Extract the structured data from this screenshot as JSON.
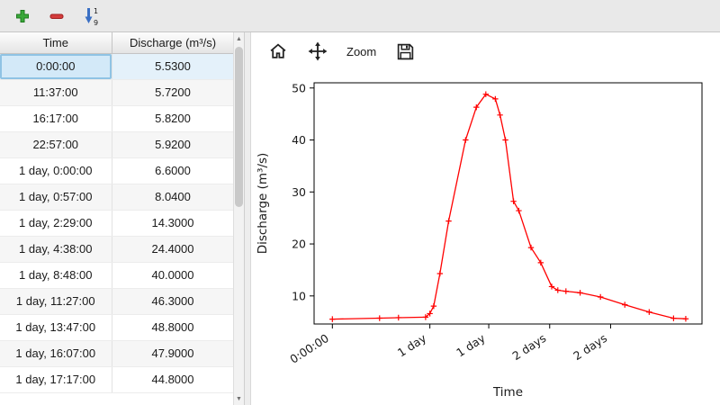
{
  "main_toolbar": {
    "buttons": [
      {
        "name": "add-row",
        "icon": "plus-icon",
        "color": "#3aa83a"
      },
      {
        "name": "remove-row",
        "icon": "minus-icon",
        "color": "#d43c3c"
      },
      {
        "name": "sort-rows",
        "icon": "sort-1-9-icon",
        "color": "#3a6fc4",
        "sort_top": "1",
        "sort_bottom": "9"
      }
    ]
  },
  "table": {
    "columns": [
      "Time",
      "Discharge (m³/s)"
    ],
    "selected_row_index": 0,
    "rows": [
      [
        "0:00:00",
        "5.5300"
      ],
      [
        "11:37:00",
        "5.7200"
      ],
      [
        "16:17:00",
        "5.8200"
      ],
      [
        "22:57:00",
        "5.9200"
      ],
      [
        "1 day, 0:00:00",
        "6.6000"
      ],
      [
        "1 day, 0:57:00",
        "8.0400"
      ],
      [
        "1 day, 2:29:00",
        "14.3000"
      ],
      [
        "1 day, 4:38:00",
        "24.4000"
      ],
      [
        "1 day, 8:48:00",
        "40.0000"
      ],
      [
        "1 day, 11:27:00",
        "46.3000"
      ],
      [
        "1 day, 13:47:00",
        "48.8000"
      ],
      [
        "1 day, 16:07:00",
        "47.9000"
      ],
      [
        "1 day, 17:17:00",
        "44.8000"
      ]
    ]
  },
  "scrollbar": {
    "up_glyph": "▲",
    "down_glyph": "▼"
  },
  "plot_toolbar": {
    "home_tooltip": "Home",
    "pan_tooltip": "Pan",
    "zoom_label": "Zoom",
    "save_tooltip": "Save"
  },
  "chart_data": {
    "type": "line",
    "title": "",
    "xlabel": "Time",
    "ylabel": "Discharge (m³/s)",
    "line_color": "#ff0000",
    "marker": "+",
    "grid": false,
    "xlim_hours": [
      -4.5,
      91
    ],
    "ylim": [
      4.6,
      51
    ],
    "x_ticks": {
      "hours": [
        0,
        24,
        38.5,
        53.5,
        68.5
      ],
      "labels": [
        "0:00:00",
        "1 day",
        "1 day",
        "2 days",
        "2 days"
      ]
    },
    "y_ticks": [
      10,
      20,
      30,
      40,
      50
    ],
    "series": [
      {
        "name": "Discharge",
        "x_hours": [
          0,
          11.62,
          16.28,
          22.95,
          24.0,
          24.95,
          26.48,
          28.63,
          32.8,
          35.45,
          37.78,
          40.12,
          41.28,
          42.6,
          44.6,
          45.9,
          48.9,
          51.3,
          54.0,
          55.5,
          57.5,
          61.0,
          66.0,
          72.0,
          78.0,
          84.0,
          87.0
        ],
        "y": [
          5.53,
          5.72,
          5.82,
          5.92,
          6.6,
          8.04,
          14.3,
          24.4,
          40.0,
          46.3,
          48.8,
          47.9,
          44.8,
          40.0,
          28.2,
          26.4,
          19.3,
          16.4,
          11.8,
          11.1,
          10.9,
          10.6,
          9.8,
          8.3,
          6.9,
          5.7,
          5.6
        ]
      }
    ]
  }
}
